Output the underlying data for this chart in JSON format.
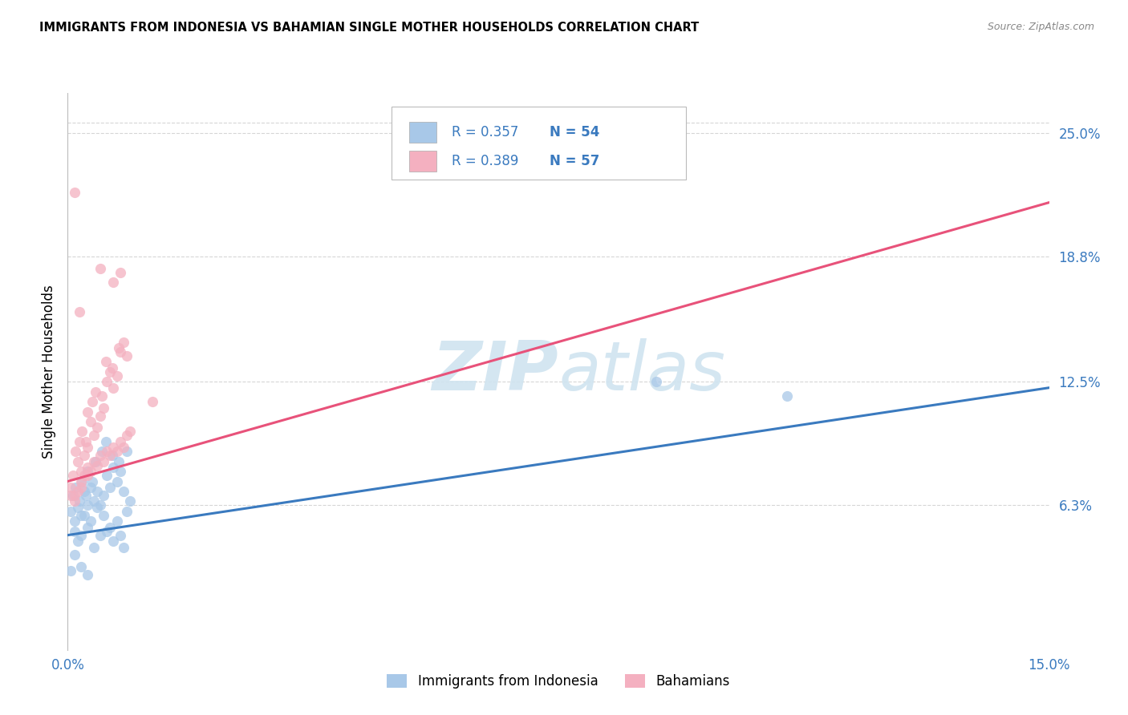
{
  "title": "IMMIGRANTS FROM INDONESIA VS BAHAMIAN SINGLE MOTHER HOUSEHOLDS CORRELATION CHART",
  "source": "Source: ZipAtlas.com",
  "ylabel": "Single Mother Households",
  "ytick_labels": [
    "6.3%",
    "12.5%",
    "18.8%",
    "25.0%"
  ],
  "ytick_values": [
    0.063,
    0.125,
    0.188,
    0.25
  ],
  "xlim": [
    0.0,
    0.15
  ],
  "ylim": [
    -0.01,
    0.27
  ],
  "legend1_r": "R = 0.357",
  "legend1_n": "N = 54",
  "legend2_r": "R = 0.389",
  "legend2_n": "N = 57",
  "legend_blue_label": "Immigrants from Indonesia",
  "legend_pink_label": "Bahamians",
  "blue_color": "#a8c8e8",
  "pink_color": "#f4b0c0",
  "blue_line_color": "#3a7abf",
  "pink_line_color": "#e8527a",
  "axis_label_color": "#3a7abf",
  "watermark_color": "#d0e4f0",
  "blue_scatter_x": [
    0.0005,
    0.001,
    0.0008,
    0.0015,
    0.002,
    0.0012,
    0.0018,
    0.0025,
    0.003,
    0.0022,
    0.0028,
    0.0035,
    0.004,
    0.003,
    0.0045,
    0.0038,
    0.005,
    0.0042,
    0.0055,
    0.006,
    0.0052,
    0.0065,
    0.007,
    0.0058,
    0.0075,
    0.008,
    0.0068,
    0.0085,
    0.009,
    0.0078,
    0.001,
    0.002,
    0.0015,
    0.003,
    0.0025,
    0.004,
    0.0035,
    0.005,
    0.0045,
    0.006,
    0.0055,
    0.007,
    0.0065,
    0.008,
    0.0075,
    0.009,
    0.0085,
    0.0095,
    0.001,
    0.002,
    0.0005,
    0.003,
    0.09,
    0.11
  ],
  "blue_scatter_y": [
    0.06,
    0.055,
    0.068,
    0.062,
    0.058,
    0.072,
    0.065,
    0.07,
    0.063,
    0.075,
    0.068,
    0.072,
    0.065,
    0.08,
    0.07,
    0.075,
    0.063,
    0.085,
    0.068,
    0.078,
    0.09,
    0.072,
    0.082,
    0.095,
    0.075,
    0.08,
    0.088,
    0.07,
    0.09,
    0.085,
    0.05,
    0.048,
    0.045,
    0.052,
    0.058,
    0.042,
    0.055,
    0.048,
    0.062,
    0.05,
    0.058,
    0.045,
    0.052,
    0.048,
    0.055,
    0.06,
    0.042,
    0.065,
    0.038,
    0.032,
    0.03,
    0.028,
    0.125,
    0.118
  ],
  "pink_scatter_x": [
    0.0005,
    0.001,
    0.0008,
    0.0015,
    0.002,
    0.0012,
    0.0018,
    0.0025,
    0.003,
    0.0022,
    0.0028,
    0.0035,
    0.004,
    0.003,
    0.0045,
    0.0038,
    0.005,
    0.0042,
    0.0055,
    0.006,
    0.0052,
    0.0065,
    0.007,
    0.0058,
    0.0075,
    0.008,
    0.0068,
    0.0085,
    0.009,
    0.0078,
    0.001,
    0.002,
    0.0015,
    0.003,
    0.0025,
    0.004,
    0.0035,
    0.005,
    0.0045,
    0.006,
    0.0055,
    0.007,
    0.0065,
    0.008,
    0.0075,
    0.009,
    0.0085,
    0.0095,
    0.001,
    0.002,
    0.0005,
    0.003,
    0.008,
    0.0018,
    0.007,
    0.005,
    0.013
  ],
  "pink_scatter_y": [
    0.072,
    0.22,
    0.078,
    0.085,
    0.08,
    0.09,
    0.095,
    0.088,
    0.092,
    0.1,
    0.095,
    0.105,
    0.098,
    0.11,
    0.102,
    0.115,
    0.108,
    0.12,
    0.112,
    0.125,
    0.118,
    0.13,
    0.122,
    0.135,
    0.128,
    0.14,
    0.132,
    0.145,
    0.138,
    0.142,
    0.068,
    0.075,
    0.07,
    0.082,
    0.078,
    0.085,
    0.08,
    0.088,
    0.083,
    0.09,
    0.085,
    0.092,
    0.088,
    0.095,
    0.09,
    0.098,
    0.092,
    0.1,
    0.065,
    0.072,
    0.068,
    0.078,
    0.18,
    0.16,
    0.175,
    0.182,
    0.115
  ],
  "blue_trend_x": [
    0.0,
    0.15
  ],
  "blue_trend_y": [
    0.048,
    0.122
  ],
  "pink_trend_x": [
    0.0,
    0.15
  ],
  "pink_trend_y": [
    0.075,
    0.215
  ],
  "background_color": "#ffffff",
  "grid_color": "#cccccc"
}
